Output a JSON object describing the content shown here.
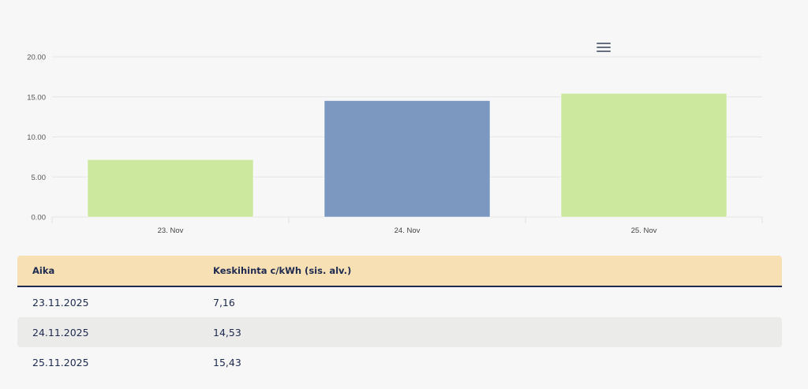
{
  "chart_data": {
    "type": "bar",
    "categories": [
      "23. Nov",
      "24. Nov",
      "25. Nov"
    ],
    "values": [
      7.16,
      14.53,
      15.43
    ],
    "colors": [
      "#cce89f",
      "#7c98c1",
      "#cce89f"
    ],
    "yticks": [
      "0.00",
      "5.00",
      "10.00",
      "15.00",
      "20.00"
    ],
    "ylim": [
      0,
      20
    ],
    "grid": true,
    "title": "",
    "xlabel": "",
    "ylabel": ""
  },
  "menu_icon": "hamburger-menu-icon",
  "table": {
    "headers": [
      "Aika",
      "Keskihinta c/kWh (sis. alv.)"
    ],
    "rows": [
      [
        "23.11.2025",
        "7,16"
      ],
      [
        "24.11.2025",
        "14,53"
      ],
      [
        "25.11.2025",
        "15,43"
      ]
    ]
  }
}
